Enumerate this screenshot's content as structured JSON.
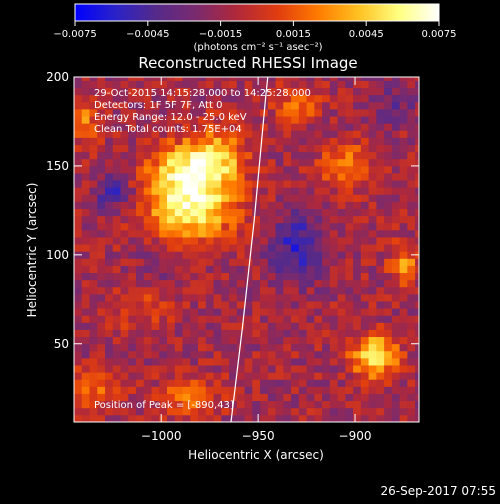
{
  "chart_data": {
    "type": "heatmap",
    "title": "Reconstructed RHESSI Image",
    "xlabel": "Heliocentric X (arcsec)",
    "ylabel": "Heliocentric Y (arcsec)",
    "xlim": [
      -1045,
      -867
    ],
    "ylim": [
      6,
      200
    ],
    "x_ticks": [
      {
        "value": -1000,
        "label": "−1000"
      },
      {
        "value": -950,
        "label": "−950"
      },
      {
        "value": -900,
        "label": "−900"
      }
    ],
    "y_ticks": [
      {
        "value": 50,
        "label": "50"
      },
      {
        "value": 100,
        "label": "100"
      },
      {
        "value": 150,
        "label": "150"
      },
      {
        "value": 200,
        "label": "200"
      }
    ],
    "colorbar": {
      "range": [
        -0.0075,
        0.0075
      ],
      "tick_labels": [
        "−0.0075",
        "−0.0045",
        "−0.0015",
        "0.0015",
        "0.0045",
        "0.0075"
      ],
      "tick_values": [
        -0.0075,
        -0.0045,
        -0.0015,
        0.0015,
        0.0045,
        0.0075
      ],
      "unit_label": "(photons cm⁻² s⁻¹ asec⁻²)",
      "colormap_stops": [
        "#0000ff",
        "#2a22c8",
        "#552a8a",
        "#7a2a6e",
        "#b0283a",
        "#e03c10",
        "#ff7a00",
        "#ffc020",
        "#ffff80",
        "#ffffff"
      ]
    },
    "annotations": [
      "29-Oct-2015 14:15:28.000 to 14:25:28.000",
      "Detectors: 1F 5F 7F, Att 0",
      "Energy Range: 12.0 - 25.0 keV",
      "Clean     Total counts: 1.75E+04"
    ],
    "peak_label": "Position of Peak = [-890,43]",
    "peak_position": [
      -890,
      43
    ],
    "limb_curve": [
      [
        -964,
        6
      ],
      [
        -958,
        60
      ],
      [
        -952,
        120
      ],
      [
        -946,
        190
      ],
      [
        -945,
        200
      ]
    ],
    "sources": [
      {
        "x": -985,
        "y": 128,
        "sx": 16,
        "sy": 14,
        "amp": 0.0072
      },
      {
        "x": -988,
        "y": 150,
        "sx": 12,
        "sy": 10,
        "amp": 0.005
      },
      {
        "x": -970,
        "y": 155,
        "sx": 10,
        "sy": 12,
        "amp": 0.0045
      },
      {
        "x": -890,
        "y": 43,
        "sx": 8,
        "sy": 8,
        "amp": 0.0075
      },
      {
        "x": -905,
        "y": 150,
        "sx": 9,
        "sy": 9,
        "amp": 0.004
      },
      {
        "x": -930,
        "y": 185,
        "sx": 8,
        "sy": 7,
        "amp": 0.0032
      },
      {
        "x": -1040,
        "y": 175,
        "sx": 6,
        "sy": 8,
        "amp": 0.0035
      },
      {
        "x": -1035,
        "y": 25,
        "sx": 10,
        "sy": 8,
        "amp": 0.003
      },
      {
        "x": -985,
        "y": 20,
        "sx": 10,
        "sy": 8,
        "amp": 0.0035
      },
      {
        "x": -875,
        "y": 95,
        "sx": 5,
        "sy": 8,
        "amp": 0.004
      },
      {
        "x": -1010,
        "y": 70,
        "sx": 10,
        "sy": 10,
        "amp": 0.002
      },
      {
        "x": -1025,
        "y": 135,
        "sx": 7,
        "sy": 7,
        "amp": -0.0035
      },
      {
        "x": -930,
        "y": 105,
        "sx": 10,
        "sy": 14,
        "amp": -0.004
      },
      {
        "x": -1000,
        "y": 95,
        "sx": 8,
        "sy": 8,
        "amp": -0.002
      },
      {
        "x": -880,
        "y": 185,
        "sx": 10,
        "sy": 8,
        "amp": -0.002
      }
    ]
  },
  "footer": {
    "timestamp": "26-Sep-2017 07:55"
  }
}
